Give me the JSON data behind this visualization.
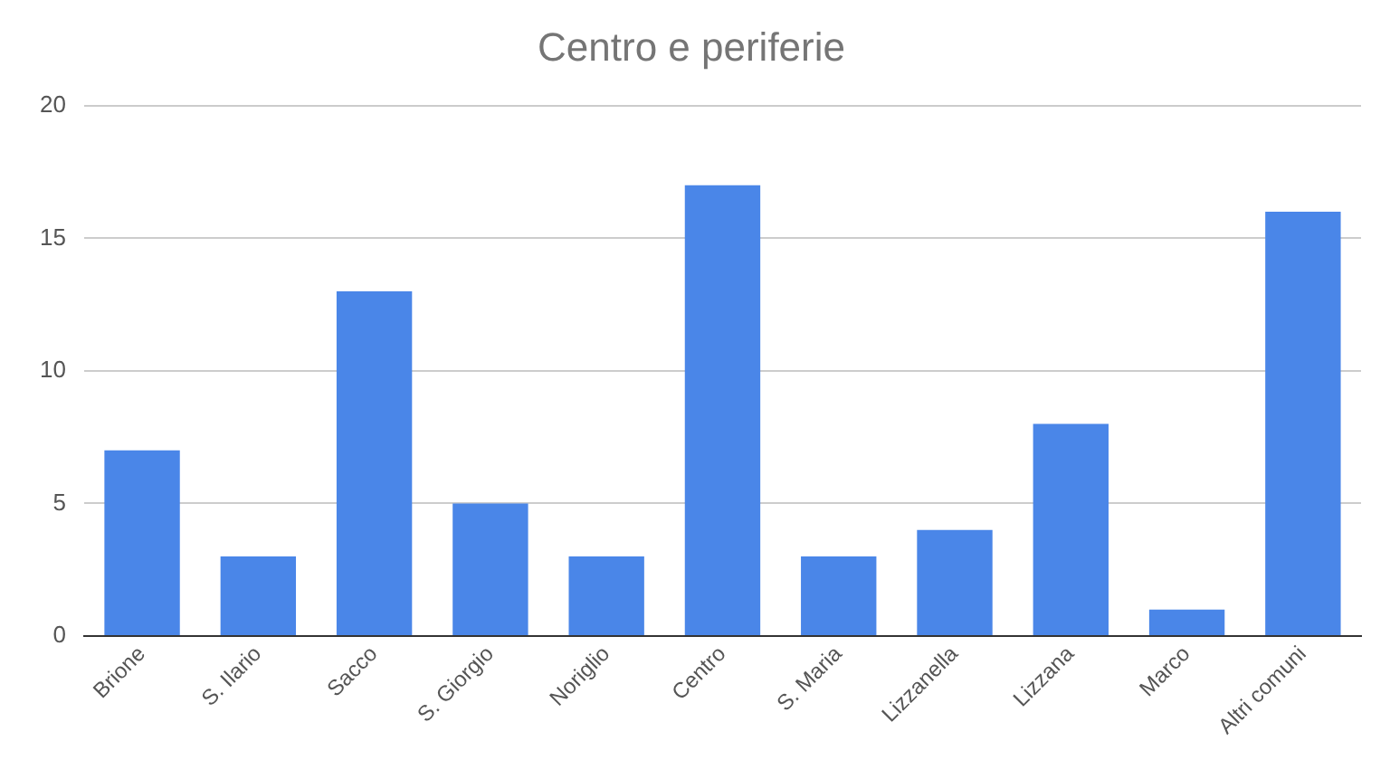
{
  "chart_data": {
    "type": "bar",
    "title": "Centro e periferie",
    "categories": [
      "Brione",
      "S. Ilario",
      "Sacco",
      "S. Giorgio",
      "Noriglio",
      "Centro",
      "S. Maria",
      "Lizzanella",
      "Lizzana",
      "Marco",
      "Altri comuni"
    ],
    "values": [
      7,
      3,
      13,
      5,
      3,
      17,
      3,
      4,
      8,
      1,
      16
    ],
    "color": "#4a86e8",
    "ylim": [
      0,
      20
    ],
    "yticks": [
      0,
      5,
      10,
      15,
      20
    ],
    "grid": "y",
    "legend": false
  }
}
